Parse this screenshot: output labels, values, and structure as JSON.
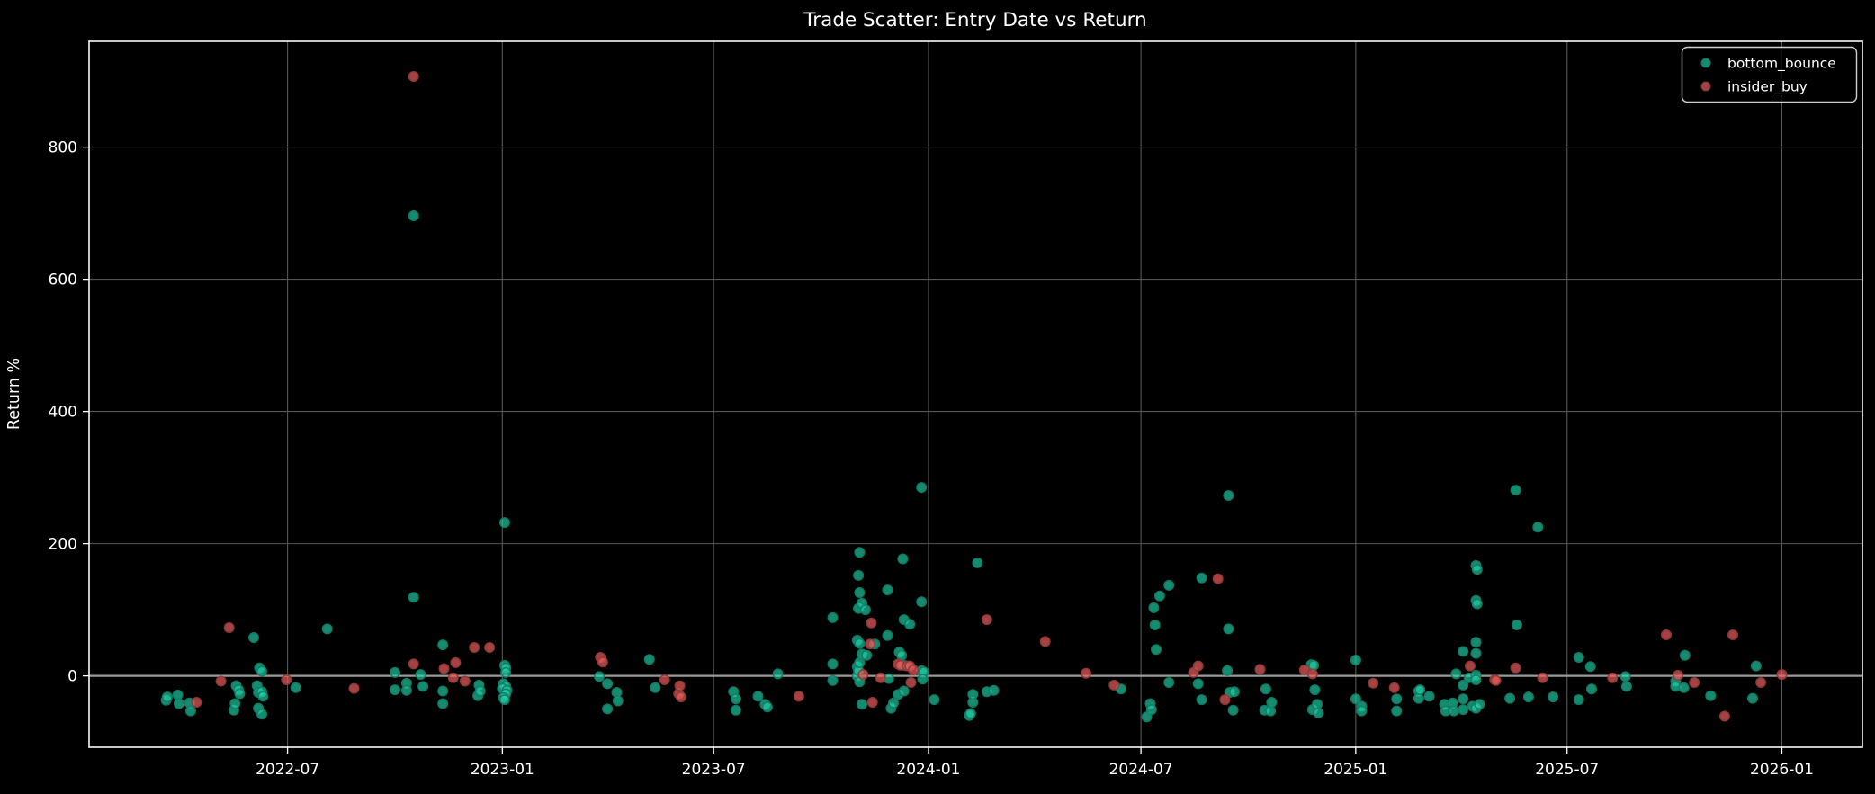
{
  "page": {
    "background": "#000000",
    "text_color": "#ffffff",
    "spine_color": "#ececec",
    "grid_color": "#565656",
    "zero_line_color": "#9a9a9a"
  },
  "chart_data": {
    "type": "scatter",
    "title": "Trade Scatter: Entry Date vs Return",
    "ylabel": "Return %",
    "xlabel": "",
    "grid": true,
    "zero_line": true,
    "legend_position": "top-right",
    "xlim": [
      "2022-01-12",
      "2026-03-11"
    ],
    "ylim": [
      -108,
      960
    ],
    "y_ticks": [
      0,
      200,
      400,
      600,
      800
    ],
    "x_ticks": [
      {
        "label": "2022-07",
        "date": "2022-07-01"
      },
      {
        "label": "2023-01",
        "date": "2023-01-01"
      },
      {
        "label": "2023-07",
        "date": "2023-07-01"
      },
      {
        "label": "2024-01",
        "date": "2024-01-01"
      },
      {
        "label": "2024-07",
        "date": "2024-07-01"
      },
      {
        "label": "2025-01",
        "date": "2025-01-01"
      },
      {
        "label": "2025-07",
        "date": "2025-07-01"
      },
      {
        "label": "2026-01",
        "date": "2026-01-01"
      }
    ],
    "series": [
      {
        "name": "bottom_bounce",
        "color": "#1fcda4",
        "fill": "rgba(35,211,170,0.66)",
        "edge": "rgba(16,128,102,0.95)",
        "points": [
          [
            "2022-03-19",
            -37
          ],
          [
            "2022-03-20",
            -32
          ],
          [
            "2022-03-29",
            -29
          ],
          [
            "2022-03-30",
            -42
          ],
          [
            "2022-04-08",
            -41
          ],
          [
            "2022-04-09",
            -53
          ],
          [
            "2022-05-16",
            -52
          ],
          [
            "2022-05-17",
            -42
          ],
          [
            "2022-05-18",
            -15
          ],
          [
            "2022-05-20",
            -21
          ],
          [
            "2022-05-21",
            -27
          ],
          [
            "2022-06-02",
            58
          ],
          [
            "2022-06-05",
            -15
          ],
          [
            "2022-06-06",
            -25
          ],
          [
            "2022-06-06",
            -49
          ],
          [
            "2022-06-07",
            12
          ],
          [
            "2022-06-09",
            7
          ],
          [
            "2022-06-09",
            -24
          ],
          [
            "2022-06-09",
            -58
          ],
          [
            "2022-06-10",
            -31
          ],
          [
            "2022-07-08",
            -18
          ],
          [
            "2022-08-04",
            71
          ],
          [
            "2022-10-01",
            5
          ],
          [
            "2022-10-01",
            -21
          ],
          [
            "2022-10-11",
            -11
          ],
          [
            "2022-10-11",
            -22
          ],
          [
            "2022-10-17",
            696
          ],
          [
            "2022-10-17",
            119
          ],
          [
            "2022-10-23",
            2
          ],
          [
            "2022-10-25",
            -16
          ],
          [
            "2022-11-11",
            47
          ],
          [
            "2022-11-11",
            -23
          ],
          [
            "2022-11-11",
            -42
          ],
          [
            "2022-12-11",
            -30
          ],
          [
            "2022-12-12",
            -14
          ],
          [
            "2022-12-13",
            -23
          ],
          [
            "2023-01-03",
            232
          ],
          [
            "2023-01-03",
            16
          ],
          [
            "2023-01-04",
            12
          ],
          [
            "2023-01-04",
            5
          ],
          [
            "2023-01-02",
            -12
          ],
          [
            "2023-01-04",
            -16
          ],
          [
            "2023-01-01",
            -19
          ],
          [
            "2023-01-05",
            -22
          ],
          [
            "2023-01-04",
            -27
          ],
          [
            "2023-01-02",
            -33
          ],
          [
            "2023-01-03",
            -36
          ],
          [
            "2023-03-25",
            -1
          ],
          [
            "2023-04-01",
            -12
          ],
          [
            "2023-04-01",
            -50
          ],
          [
            "2023-04-09",
            -25
          ],
          [
            "2023-04-10",
            -38
          ],
          [
            "2023-05-07",
            25
          ],
          [
            "2023-05-12",
            -18
          ],
          [
            "2023-07-18",
            -24
          ],
          [
            "2023-07-20",
            -35
          ],
          [
            "2023-07-20",
            -52
          ],
          [
            "2023-08-08",
            -31
          ],
          [
            "2023-08-14",
            -43
          ],
          [
            "2023-08-16",
            -47
          ],
          [
            "2023-08-25",
            3
          ],
          [
            "2023-10-11",
            88
          ],
          [
            "2023-10-11",
            18
          ],
          [
            "2023-10-11",
            -7
          ],
          [
            "2023-11-01",
            54
          ],
          [
            "2023-11-01",
            14
          ],
          [
            "2023-11-01",
            0
          ],
          [
            "2023-11-02",
            152
          ],
          [
            "2023-11-02",
            102
          ],
          [
            "2023-11-02",
            8
          ],
          [
            "2023-11-03",
            187
          ],
          [
            "2023-11-03",
            126
          ],
          [
            "2023-11-03",
            49
          ],
          [
            "2023-11-03",
            20
          ],
          [
            "2023-11-03",
            -9
          ],
          [
            "2023-11-05",
            110
          ],
          [
            "2023-11-05",
            33
          ],
          [
            "2023-11-05",
            -43
          ],
          [
            "2023-11-08",
            100
          ],
          [
            "2023-11-09",
            31
          ],
          [
            "2023-11-16",
            48
          ],
          [
            "2023-11-27",
            130
          ],
          [
            "2023-11-27",
            61
          ],
          [
            "2023-11-28",
            -4
          ],
          [
            "2023-11-30",
            -49
          ],
          [
            "2023-12-02",
            -41
          ],
          [
            "2023-12-06",
            -28
          ],
          [
            "2023-12-07",
            36
          ],
          [
            "2023-12-09",
            31
          ],
          [
            "2023-12-11",
            16
          ],
          [
            "2023-12-11",
            -23
          ],
          [
            "2023-12-10",
            177
          ],
          [
            "2023-12-11",
            85
          ],
          [
            "2023-12-16",
            78
          ],
          [
            "2023-12-26",
            285
          ],
          [
            "2023-12-26",
            112
          ],
          [
            "2023-12-26",
            8
          ],
          [
            "2023-12-28",
            6
          ],
          [
            "2023-12-27",
            -5
          ],
          [
            "2024-01-06",
            -36
          ],
          [
            "2024-02-05",
            -60
          ],
          [
            "2024-02-06",
            -57
          ],
          [
            "2024-02-08",
            -40
          ],
          [
            "2024-02-08",
            -28
          ],
          [
            "2024-02-12",
            171
          ],
          [
            "2024-02-20",
            -24
          ],
          [
            "2024-02-26",
            -22
          ],
          [
            "2024-06-14",
            -20
          ],
          [
            "2024-07-06",
            -62
          ],
          [
            "2024-07-09",
            -42
          ],
          [
            "2024-07-10",
            -51
          ],
          [
            "2024-07-12",
            103
          ],
          [
            "2024-07-13",
            77
          ],
          [
            "2024-07-14",
            40
          ],
          [
            "2024-07-17",
            121
          ],
          [
            "2024-07-25",
            137
          ],
          [
            "2024-07-25",
            -10
          ],
          [
            "2024-08-19",
            -12
          ],
          [
            "2024-08-22",
            148
          ],
          [
            "2024-08-22",
            -36
          ],
          [
            "2024-09-13",
            8
          ],
          [
            "2024-09-14",
            273
          ],
          [
            "2024-09-14",
            71
          ],
          [
            "2024-09-15",
            -25
          ],
          [
            "2024-09-18",
            -52
          ],
          [
            "2024-09-19",
            -24
          ],
          [
            "2024-10-15",
            -52
          ],
          [
            "2024-10-16",
            -20
          ],
          [
            "2024-10-20",
            -53
          ],
          [
            "2024-10-21",
            -40
          ],
          [
            "2024-11-24",
            17
          ],
          [
            "2024-11-26",
            16
          ],
          [
            "2024-11-27",
            -21
          ],
          [
            "2024-11-25",
            -51
          ],
          [
            "2024-11-29",
            -43
          ],
          [
            "2024-11-30",
            -56
          ],
          [
            "2025-01-01",
            24
          ],
          [
            "2025-01-01",
            -35
          ],
          [
            "2025-01-06",
            -46
          ],
          [
            "2025-01-06",
            -53
          ],
          [
            "2025-02-05",
            -35
          ],
          [
            "2025-02-05",
            -53
          ],
          [
            "2025-02-24",
            -23
          ],
          [
            "2025-02-24",
            -34
          ],
          [
            "2025-02-25",
            -21
          ],
          [
            "2025-03-05",
            -31
          ],
          [
            "2025-03-18",
            -43
          ],
          [
            "2025-03-19",
            -53
          ],
          [
            "2025-03-25",
            -41
          ],
          [
            "2025-03-26",
            -53
          ],
          [
            "2025-03-28",
            3
          ],
          [
            "2025-04-03",
            37
          ],
          [
            "2025-04-03",
            -14
          ],
          [
            "2025-04-03",
            -35
          ],
          [
            "2025-04-03",
            -51
          ],
          [
            "2025-04-08",
            -3
          ],
          [
            "2025-04-11",
            -46
          ],
          [
            "2025-04-14",
            167
          ],
          [
            "2025-04-15",
            161
          ],
          [
            "2025-04-14",
            114
          ],
          [
            "2025-04-15",
            109
          ],
          [
            "2025-04-14",
            51
          ],
          [
            "2025-04-14",
            34
          ],
          [
            "2025-04-14",
            1
          ],
          [
            "2025-04-14",
            -6
          ],
          [
            "2025-04-14",
            -49
          ],
          [
            "2025-04-17",
            -43
          ],
          [
            "2025-05-13",
            -34
          ],
          [
            "2025-05-18",
            281
          ],
          [
            "2025-05-19",
            77
          ],
          [
            "2025-05-29",
            -32
          ],
          [
            "2025-06-06",
            225
          ],
          [
            "2025-06-19",
            -32
          ],
          [
            "2025-07-11",
            28
          ],
          [
            "2025-07-11",
            -36
          ],
          [
            "2025-07-21",
            14
          ],
          [
            "2025-07-22",
            -20
          ],
          [
            "2025-08-20",
            -1
          ],
          [
            "2025-08-21",
            -16
          ],
          [
            "2025-10-02",
            -8
          ],
          [
            "2025-10-02",
            -16
          ],
          [
            "2025-10-09",
            -18
          ],
          [
            "2025-10-10",
            31
          ],
          [
            "2025-11-01",
            -30
          ],
          [
            "2025-12-07",
            -34
          ],
          [
            "2025-12-10",
            15
          ]
        ]
      },
      {
        "name": "insider_buy",
        "color": "#e05c5b",
        "fill": "rgba(229,93,92,0.72)",
        "edge": "rgba(148,58,57,0.95)",
        "points": [
          [
            "2022-04-14",
            -40
          ],
          [
            "2022-05-05",
            -8
          ],
          [
            "2022-05-12",
            73
          ],
          [
            "2022-06-30",
            -6
          ],
          [
            "2022-08-27",
            -19
          ],
          [
            "2022-10-17",
            907
          ],
          [
            "2022-10-17",
            18
          ],
          [
            "2022-11-12",
            11
          ],
          [
            "2022-11-20",
            -3
          ],
          [
            "2022-11-22",
            20
          ],
          [
            "2022-11-30",
            -8
          ],
          [
            "2022-12-08",
            43
          ],
          [
            "2022-12-21",
            43
          ],
          [
            "2023-03-26",
            28
          ],
          [
            "2023-03-28",
            21
          ],
          [
            "2023-05-20",
            -6
          ],
          [
            "2023-06-01",
            -27
          ],
          [
            "2023-06-02",
            -15
          ],
          [
            "2023-06-03",
            -32
          ],
          [
            "2023-09-12",
            -31
          ],
          [
            "2023-11-06",
            2
          ],
          [
            "2023-11-12",
            48
          ],
          [
            "2023-11-13",
            80
          ],
          [
            "2023-11-14",
            -40
          ],
          [
            "2023-11-21",
            -3
          ],
          [
            "2023-12-06",
            18
          ],
          [
            "2023-12-08",
            16
          ],
          [
            "2023-12-14",
            15
          ],
          [
            "2023-12-16",
            15
          ],
          [
            "2023-12-17",
            -10
          ],
          [
            "2023-12-19",
            9
          ],
          [
            "2024-02-20",
            85
          ],
          [
            "2024-04-10",
            52
          ],
          [
            "2024-05-15",
            4
          ],
          [
            "2024-06-08",
            -14
          ],
          [
            "2024-08-15",
            5
          ],
          [
            "2024-08-19",
            15
          ],
          [
            "2024-09-05",
            147
          ],
          [
            "2024-09-11",
            -36
          ],
          [
            "2024-10-11",
            10
          ],
          [
            "2024-11-18",
            9
          ],
          [
            "2024-11-25",
            3
          ],
          [
            "2025-01-16",
            -11
          ],
          [
            "2025-02-03",
            -18
          ],
          [
            "2025-04-09",
            15
          ],
          [
            "2025-04-30",
            -6
          ],
          [
            "2025-05-01",
            -7
          ],
          [
            "2025-05-18",
            12
          ],
          [
            "2025-06-10",
            -3
          ],
          [
            "2025-08-09",
            -3
          ],
          [
            "2025-09-24",
            62
          ],
          [
            "2025-10-04",
            1
          ],
          [
            "2025-10-18",
            -10
          ],
          [
            "2025-11-13",
            -61
          ],
          [
            "2025-11-20",
            62
          ],
          [
            "2025-12-14",
            -10
          ],
          [
            "2026-01-01",
            2
          ]
        ]
      }
    ]
  }
}
